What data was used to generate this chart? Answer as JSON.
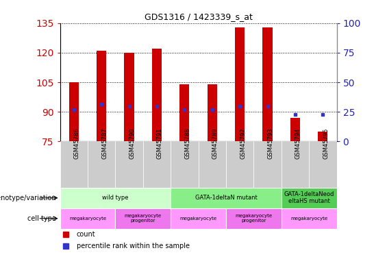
{
  "title": "GDS1316 / 1423339_s_at",
  "samples": [
    "GSM45786",
    "GSM45787",
    "GSM45790",
    "GSM45791",
    "GSM45788",
    "GSM45789",
    "GSM45792",
    "GSM45793",
    "GSM45794",
    "GSM45795"
  ],
  "bar_tops": [
    105,
    121,
    120,
    122,
    104,
    104,
    133,
    133,
    87,
    80
  ],
  "bar_bottom": 75,
  "percentile_left_axis": [
    91,
    94,
    93,
    93,
    91,
    91,
    93,
    93,
    88.5,
    88.5
  ],
  "ylim_left": [
    75,
    135
  ],
  "ylim_right": [
    0,
    100
  ],
  "yticks_left": [
    75,
    90,
    105,
    120,
    135
  ],
  "yticks_right": [
    0,
    25,
    50,
    75,
    100
  ],
  "bar_color": "#cc0000",
  "percentile_color": "#3333cc",
  "grid_color": "black",
  "tick_label_color_left": "#cc0000",
  "tick_label_color_right": "#2222bb",
  "genotype_groups": [
    {
      "label": "wild type",
      "start": 0,
      "end": 4,
      "color": "#ccffcc"
    },
    {
      "label": "GATA-1deltaN mutant",
      "start": 4,
      "end": 8,
      "color": "#88ee88"
    },
    {
      "label": "GATA-1deltaNeod\neltaHS mutant",
      "start": 8,
      "end": 10,
      "color": "#55cc55"
    }
  ],
  "cell_type_groups": [
    {
      "label": "megakaryocyte",
      "start": 0,
      "end": 2,
      "color": "#ff99ff"
    },
    {
      "label": "megakaryocyte\nprogenitor",
      "start": 2,
      "end": 4,
      "color": "#ee77ee"
    },
    {
      "label": "megakaryocyte",
      "start": 4,
      "end": 6,
      "color": "#ff99ff"
    },
    {
      "label": "megakaryocyte\nprogenitor",
      "start": 6,
      "end": 8,
      "color": "#ee77ee"
    },
    {
      "label": "megakaryocyte",
      "start": 8,
      "end": 10,
      "color": "#ff99ff"
    }
  ],
  "genotype_label": "genotype/variation",
  "cell_type_label": "cell type",
  "legend_count_color": "#cc0000",
  "legend_percentile_color": "#3333cc",
  "legend_count_label": "count",
  "legend_percentile_label": "percentile rank within the sample",
  "bar_width": 0.35,
  "xticklabel_bg": "#cccccc"
}
